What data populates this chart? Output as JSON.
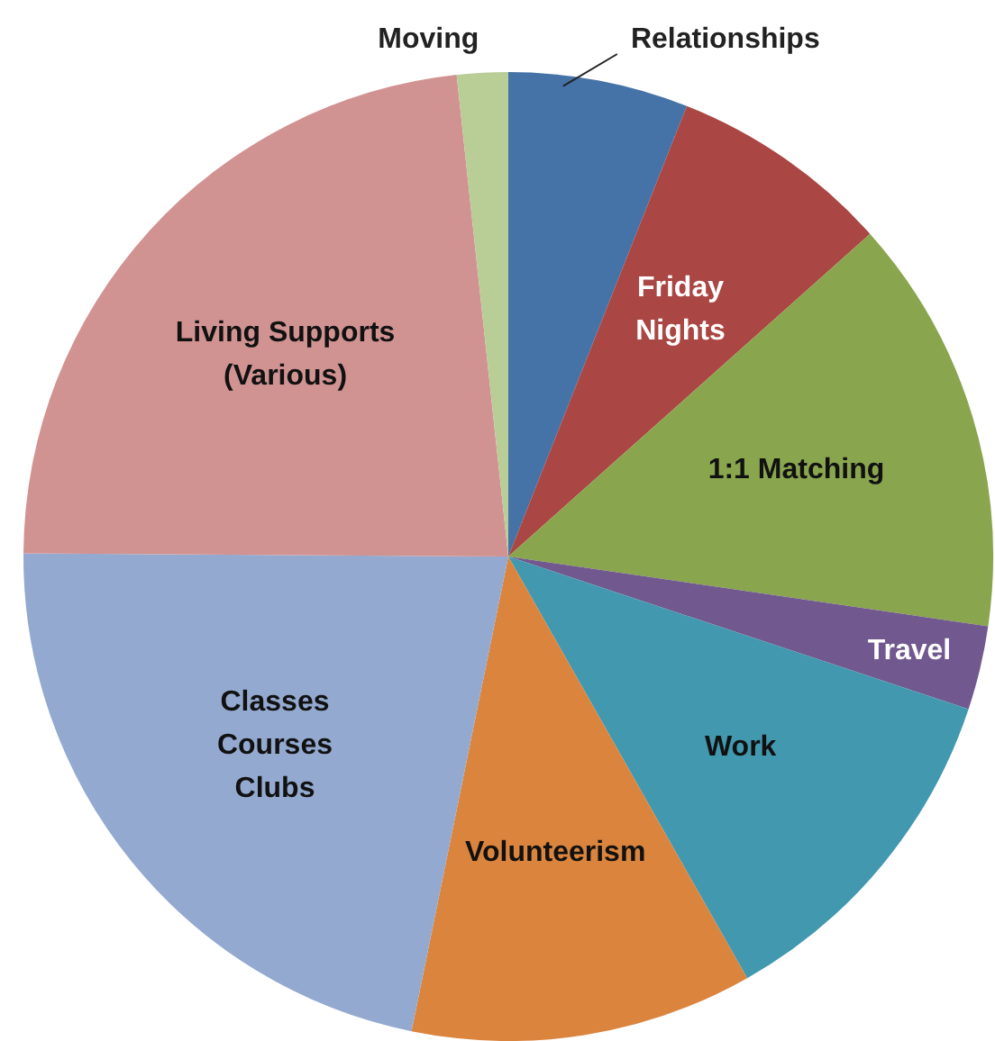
{
  "chart_data": {
    "type": "pie",
    "categories": [
      "Relationships",
      "Friday\nNights",
      "1:1 Matching",
      "Travel",
      "Work",
      "Volunteerism",
      "Classes\nCourses\nClubs",
      "Living Supports\n(Various)",
      "Moving"
    ],
    "values": [
      6.0,
      7.4,
      13.9,
      2.8,
      11.7,
      11.4,
      21.9,
      23.2,
      1.7
    ],
    "colors": [
      "#4572a7",
      "#aa4643",
      "#89a54e",
      "#71588f",
      "#4198af",
      "#db843d",
      "#93a9cf",
      "#d19392",
      "#b9cd96"
    ]
  }
}
